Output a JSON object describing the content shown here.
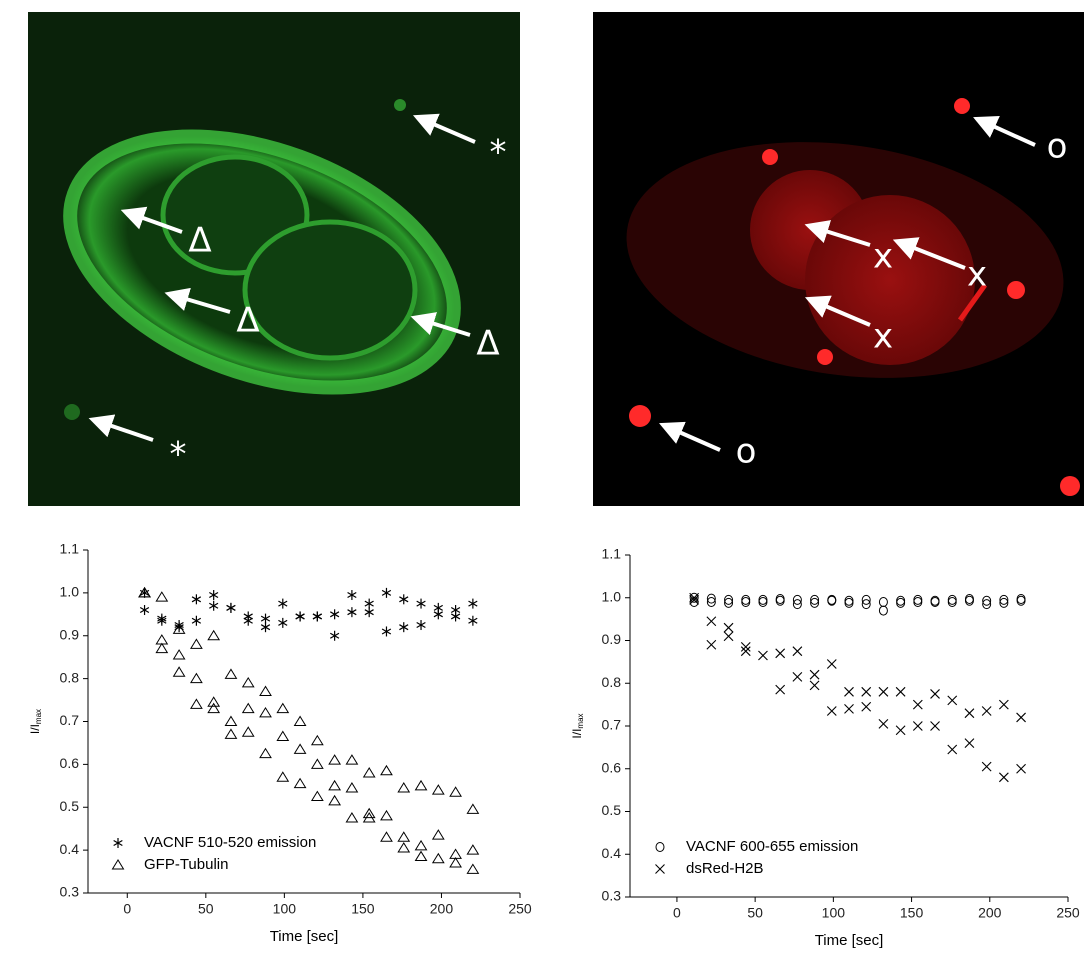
{
  "images": [
    {
      "labels": [
        "*",
        "Δ",
        "Δ",
        "Δ",
        "*"
      ]
    },
    {
      "labels": [
        "o",
        "x",
        "x",
        "x",
        "o"
      ]
    }
  ],
  "chart_data": [
    {
      "type": "scatter",
      "xlabel": "Time [sec]",
      "ylabel": "I/I",
      "ylabel_subscript": "max",
      "xlim": [
        -25,
        250
      ],
      "ylim": [
        0.3,
        1.1
      ],
      "xticks": [
        0,
        50,
        100,
        150,
        200,
        250
      ],
      "yticks": [
        0.3,
        0.4,
        0.5,
        0.6,
        0.7,
        0.8,
        0.9,
        {
          "value": 1.0,
          "label": "1.0"
        },
        1.1
      ],
      "legend": "lower left",
      "series": [
        {
          "name": "VACNF 510-520 emission",
          "marker": "star",
          "color": "#000000",
          "x": [
            11,
            11,
            22,
            22,
            33,
            33,
            44,
            44,
            55,
            55,
            66,
            66,
            77,
            77,
            88,
            88,
            99,
            99,
            110,
            110,
            121,
            121,
            132,
            132,
            143,
            143,
            154,
            154,
            165,
            165,
            176,
            176,
            187,
            187,
            198,
            198,
            209,
            209,
            220,
            220
          ],
          "values": [
            1.0,
            0.96,
            0.94,
            0.935,
            0.92,
            0.925,
            0.985,
            0.935,
            0.995,
            0.97,
            0.965,
            0.965,
            0.945,
            0.935,
            0.94,
            0.92,
            0.975,
            0.93,
            0.945,
            0.945,
            0.945,
            0.945,
            0.95,
            0.9,
            0.995,
            0.955,
            0.975,
            0.955,
            1.0,
            0.91,
            0.985,
            0.92,
            0.975,
            0.925,
            0.965,
            0.95,
            0.96,
            0.945,
            0.975,
            0.935
          ]
        },
        {
          "name": "GFP-Tubulin",
          "marker": "triangle",
          "color": "#000000",
          "x": [
            11,
            11,
            22,
            22,
            22,
            33,
            33,
            33,
            44,
            44,
            44,
            55,
            55,
            55,
            66,
            66,
            66,
            77,
            77,
            77,
            88,
            88,
            88,
            99,
            99,
            99,
            110,
            110,
            110,
            121,
            121,
            121,
            132,
            132,
            132,
            143,
            143,
            143,
            154,
            154,
            154,
            165,
            165,
            165,
            176,
            176,
            176,
            187,
            187,
            187,
            198,
            198,
            198,
            209,
            209,
            209,
            220,
            220,
            220
          ],
          "values": [
            1.0,
            1.0,
            0.99,
            0.89,
            0.87,
            0.915,
            0.855,
            0.815,
            0.88,
            0.8,
            0.74,
            0.9,
            0.745,
            0.73,
            0.81,
            0.7,
            0.67,
            0.79,
            0.73,
            0.675,
            0.77,
            0.72,
            0.625,
            0.73,
            0.665,
            0.57,
            0.7,
            0.635,
            0.555,
            0.655,
            0.6,
            0.525,
            0.61,
            0.55,
            0.515,
            0.61,
            0.545,
            0.475,
            0.58,
            0.485,
            0.475,
            0.585,
            0.48,
            0.43,
            0.545,
            0.43,
            0.405,
            0.55,
            0.41,
            0.385,
            0.54,
            0.435,
            0.38,
            0.535,
            0.39,
            0.37,
            0.495,
            0.4,
            0.355
          ]
        }
      ]
    },
    {
      "type": "scatter",
      "xlabel": "Time [sec]",
      "ylabel": "I/I",
      "ylabel_subscript": "max",
      "xlim": [
        -30,
        250
      ],
      "ylim": [
        0.3,
        1.1
      ],
      "xticks": [
        0,
        50,
        100,
        150,
        200,
        250
      ],
      "yticks": [
        0.3,
        0.4,
        0.5,
        0.6,
        0.7,
        0.8,
        0.9,
        {
          "value": 1.0,
          "label": "1.0"
        },
        1.1
      ],
      "legend": "lower left",
      "series": [
        {
          "name": "VACNF 600-655 emission",
          "marker": "circle",
          "color": "#000000",
          "x": [
            11,
            11,
            22,
            22,
            33,
            33,
            44,
            44,
            55,
            55,
            66,
            66,
            77,
            77,
            88,
            88,
            99,
            99,
            110,
            110,
            121,
            121,
            132,
            132,
            143,
            143,
            154,
            154,
            165,
            165,
            176,
            176,
            187,
            187,
            198,
            198,
            209,
            209,
            220,
            220
          ],
          "values": [
            1.0,
            0.99,
            0.998,
            0.99,
            0.995,
            0.988,
            0.995,
            0.99,
            0.995,
            0.99,
            0.997,
            0.993,
            0.995,
            0.985,
            0.995,
            0.988,
            0.995,
            0.993,
            0.993,
            0.988,
            0.995,
            0.985,
            0.99,
            0.97,
            0.993,
            0.988,
            0.995,
            0.99,
            0.993,
            0.99,
            0.995,
            0.99,
            0.997,
            0.993,
            0.993,
            0.985,
            0.995,
            0.988,
            0.997,
            0.993
          ]
        },
        {
          "name": "dsRed-H2B",
          "marker": "cross",
          "color": "#000000",
          "x": [
            11,
            11,
            22,
            22,
            33,
            33,
            44,
            44,
            55,
            66,
            66,
            77,
            77,
            88,
            88,
            99,
            99,
            110,
            110,
            121,
            121,
            132,
            132,
            143,
            143,
            154,
            154,
            165,
            165,
            176,
            176,
            187,
            187,
            198,
            198,
            209,
            209,
            220,
            220
          ],
          "values": [
            1.0,
            0.995,
            0.945,
            0.89,
            0.93,
            0.91,
            0.885,
            0.875,
            0.865,
            0.87,
            0.785,
            0.875,
            0.815,
            0.82,
            0.795,
            0.845,
            0.735,
            0.78,
            0.74,
            0.78,
            0.745,
            0.78,
            0.705,
            0.78,
            0.69,
            0.75,
            0.7,
            0.775,
            0.7,
            0.76,
            0.645,
            0.73,
            0.66,
            0.735,
            0.605,
            0.75,
            0.58,
            0.72,
            0.6
          ]
        }
      ]
    }
  ]
}
